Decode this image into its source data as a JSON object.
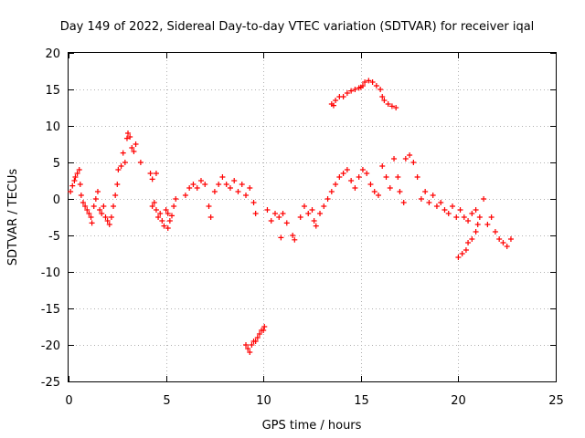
{
  "chart_data": {
    "type": "scatter",
    "title": "Day 149 of 2022, Sidereal Day-to-day VTEC variation (SDTVAR) for receiver iqal",
    "xlabel": "GPS time / hours",
    "ylabel": "SDTVAR / TECUs",
    "xlim": [
      0,
      25
    ],
    "ylim": [
      -25,
      20
    ],
    "xticks": [
      0,
      5,
      10,
      15,
      20,
      25
    ],
    "yticks": [
      20,
      15,
      10,
      5,
      0,
      -5,
      -10,
      -15,
      -20,
      -25
    ],
    "grid": true,
    "marker": "+",
    "series": [
      {
        "name": "SDTVAR",
        "color": "#ff0000",
        "points": [
          [
            0.1,
            1.0
          ],
          [
            0.2,
            1.8
          ],
          [
            0.3,
            2.5
          ],
          [
            0.35,
            3.0
          ],
          [
            0.45,
            3.5
          ],
          [
            0.55,
            4.0
          ],
          [
            0.6,
            2.0
          ],
          [
            0.65,
            0.5
          ],
          [
            0.75,
            -0.5
          ],
          [
            0.85,
            -1.0
          ],
          [
            0.95,
            -1.5
          ],
          [
            1.05,
            -2.0
          ],
          [
            1.15,
            -2.5
          ],
          [
            1.2,
            -3.3
          ],
          [
            1.3,
            -1.0
          ],
          [
            1.4,
            0.0
          ],
          [
            1.5,
            1.0
          ],
          [
            1.6,
            -1.5
          ],
          [
            1.7,
            -2.0
          ],
          [
            1.8,
            -1.0
          ],
          [
            1.9,
            -2.5
          ],
          [
            2.0,
            -3.0
          ],
          [
            2.1,
            -3.5
          ],
          [
            2.2,
            -2.5
          ],
          [
            2.3,
            -1.0
          ],
          [
            2.4,
            0.5
          ],
          [
            2.5,
            2.0
          ],
          [
            2.55,
            4.0
          ],
          [
            2.7,
            4.5
          ],
          [
            2.8,
            6.3
          ],
          [
            2.9,
            5.0
          ],
          [
            3.0,
            8.3
          ],
          [
            3.05,
            9.0
          ],
          [
            3.15,
            8.5
          ],
          [
            3.25,
            7.0
          ],
          [
            3.35,
            6.5
          ],
          [
            3.45,
            7.5
          ],
          [
            3.7,
            5.0
          ],
          [
            4.2,
            3.5
          ],
          [
            4.3,
            2.7
          ],
          [
            4.5,
            3.5
          ],
          [
            4.3,
            -1.0
          ],
          [
            4.4,
            -0.5
          ],
          [
            4.5,
            -1.5
          ],
          [
            4.6,
            -2.5
          ],
          [
            4.7,
            -2.0
          ],
          [
            4.8,
            -3.0
          ],
          [
            4.9,
            -3.7
          ],
          [
            5.0,
            -1.5
          ],
          [
            5.1,
            -2.0
          ],
          [
            5.2,
            -3.0
          ],
          [
            5.3,
            -2.3
          ],
          [
            5.4,
            -1.0
          ],
          [
            5.5,
            0.0
          ],
          [
            5.1,
            -4.0
          ],
          [
            6.0,
            0.5
          ],
          [
            6.2,
            1.5
          ],
          [
            6.4,
            2.0
          ],
          [
            6.6,
            1.5
          ],
          [
            6.8,
            2.5
          ],
          [
            7.0,
            2.0
          ],
          [
            7.2,
            -1.0
          ],
          [
            7.3,
            -2.5
          ],
          [
            7.5,
            1.0
          ],
          [
            7.7,
            2.0
          ],
          [
            7.9,
            3.0
          ],
          [
            8.1,
            2.0
          ],
          [
            8.3,
            1.5
          ],
          [
            8.5,
            2.5
          ],
          [
            8.7,
            1.0
          ],
          [
            8.9,
            2.0
          ],
          [
            9.1,
            0.5
          ],
          [
            9.3,
            1.5
          ],
          [
            9.5,
            -0.5
          ],
          [
            9.6,
            -2.0
          ],
          [
            10.2,
            -1.5
          ],
          [
            10.4,
            -3.0
          ],
          [
            10.6,
            -2.0
          ],
          [
            10.8,
            -2.5
          ],
          [
            11.0,
            -2.0
          ],
          [
            11.2,
            -3.3
          ],
          [
            10.9,
            -5.3
          ],
          [
            11.5,
            -5.0
          ],
          [
            11.6,
            -5.6
          ],
          [
            11.9,
            -2.5
          ],
          [
            12.1,
            -1.0
          ],
          [
            12.3,
            -2.0
          ],
          [
            12.5,
            -1.5
          ],
          [
            12.6,
            -3.0
          ],
          [
            12.7,
            -3.7
          ],
          [
            12.9,
            -2.0
          ],
          [
            13.1,
            -1.0
          ],
          [
            13.3,
            0.0
          ],
          [
            13.5,
            1.0
          ],
          [
            13.7,
            2.0
          ],
          [
            13.9,
            3.0
          ],
          [
            14.1,
            3.5
          ],
          [
            14.3,
            4.0
          ],
          [
            14.5,
            2.5
          ],
          [
            14.7,
            1.5
          ],
          [
            14.9,
            3.0
          ],
          [
            15.1,
            4.0
          ],
          [
            15.3,
            3.5
          ],
          [
            15.5,
            2.0
          ],
          [
            15.7,
            1.0
          ],
          [
            15.9,
            0.5
          ],
          [
            16.1,
            4.5
          ],
          [
            16.3,
            3.0
          ],
          [
            16.5,
            1.5
          ],
          [
            16.7,
            5.5
          ],
          [
            16.9,
            3.0
          ],
          [
            17.0,
            1.0
          ],
          [
            17.2,
            -0.5
          ],
          [
            17.3,
            5.5
          ],
          [
            17.5,
            6.0
          ],
          [
            17.7,
            5.0
          ],
          [
            17.9,
            3.0
          ],
          [
            18.1,
            0.0
          ],
          [
            18.3,
            1.0
          ],
          [
            18.5,
            -0.5
          ],
          [
            18.7,
            0.5
          ],
          [
            18.9,
            -1.0
          ],
          [
            19.1,
            -0.5
          ],
          [
            19.3,
            -1.5
          ],
          [
            19.5,
            -2.0
          ],
          [
            19.7,
            -1.0
          ],
          [
            19.9,
            -2.5
          ],
          [
            20.1,
            -1.5
          ],
          [
            20.3,
            -2.5
          ],
          [
            20.5,
            -3.0
          ],
          [
            20.7,
            -2.0
          ],
          [
            20.9,
            -1.5
          ],
          [
            21.1,
            -2.5
          ],
          [
            21.3,
            0.0
          ],
          [
            21.5,
            -3.5
          ],
          [
            21.7,
            -2.5
          ],
          [
            21.9,
            -4.5
          ],
          [
            22.1,
            -5.5
          ],
          [
            22.3,
            -6.0
          ],
          [
            22.5,
            -6.5
          ],
          [
            22.7,
            -5.5
          ],
          [
            21.0,
            -3.5
          ],
          [
            20.0,
            -8.0
          ],
          [
            20.2,
            -7.5
          ],
          [
            20.4,
            -7.0
          ],
          [
            20.5,
            -6.0
          ],
          [
            20.7,
            -5.5
          ],
          [
            20.9,
            -4.5
          ],
          [
            13.5,
            13.0
          ],
          [
            13.7,
            13.5
          ],
          [
            13.9,
            14.0
          ],
          [
            14.1,
            14.0
          ],
          [
            14.3,
            14.5
          ],
          [
            14.5,
            14.8
          ],
          [
            14.7,
            15.0
          ],
          [
            14.9,
            15.2
          ],
          [
            15.1,
            15.5
          ],
          [
            15.2,
            16.0
          ],
          [
            15.4,
            16.2
          ],
          [
            15.6,
            16.0
          ],
          [
            15.8,
            15.5
          ],
          [
            16.0,
            15.0
          ],
          [
            16.1,
            14.0
          ],
          [
            16.2,
            13.5
          ],
          [
            16.4,
            13.0
          ],
          [
            16.6,
            12.7
          ],
          [
            16.8,
            12.5
          ],
          [
            13.6,
            12.8
          ],
          [
            15.0,
            15.3
          ],
          [
            9.1,
            -20.0
          ],
          [
            9.2,
            -20.5
          ],
          [
            9.3,
            -21.0
          ],
          [
            9.4,
            -20.0
          ],
          [
            9.5,
            -19.5
          ],
          [
            9.6,
            -19.5
          ],
          [
            9.7,
            -19.0
          ],
          [
            9.8,
            -18.5
          ],
          [
            9.9,
            -18.0
          ],
          [
            10.0,
            -18.0
          ],
          [
            10.05,
            -17.5
          ]
        ]
      }
    ]
  }
}
